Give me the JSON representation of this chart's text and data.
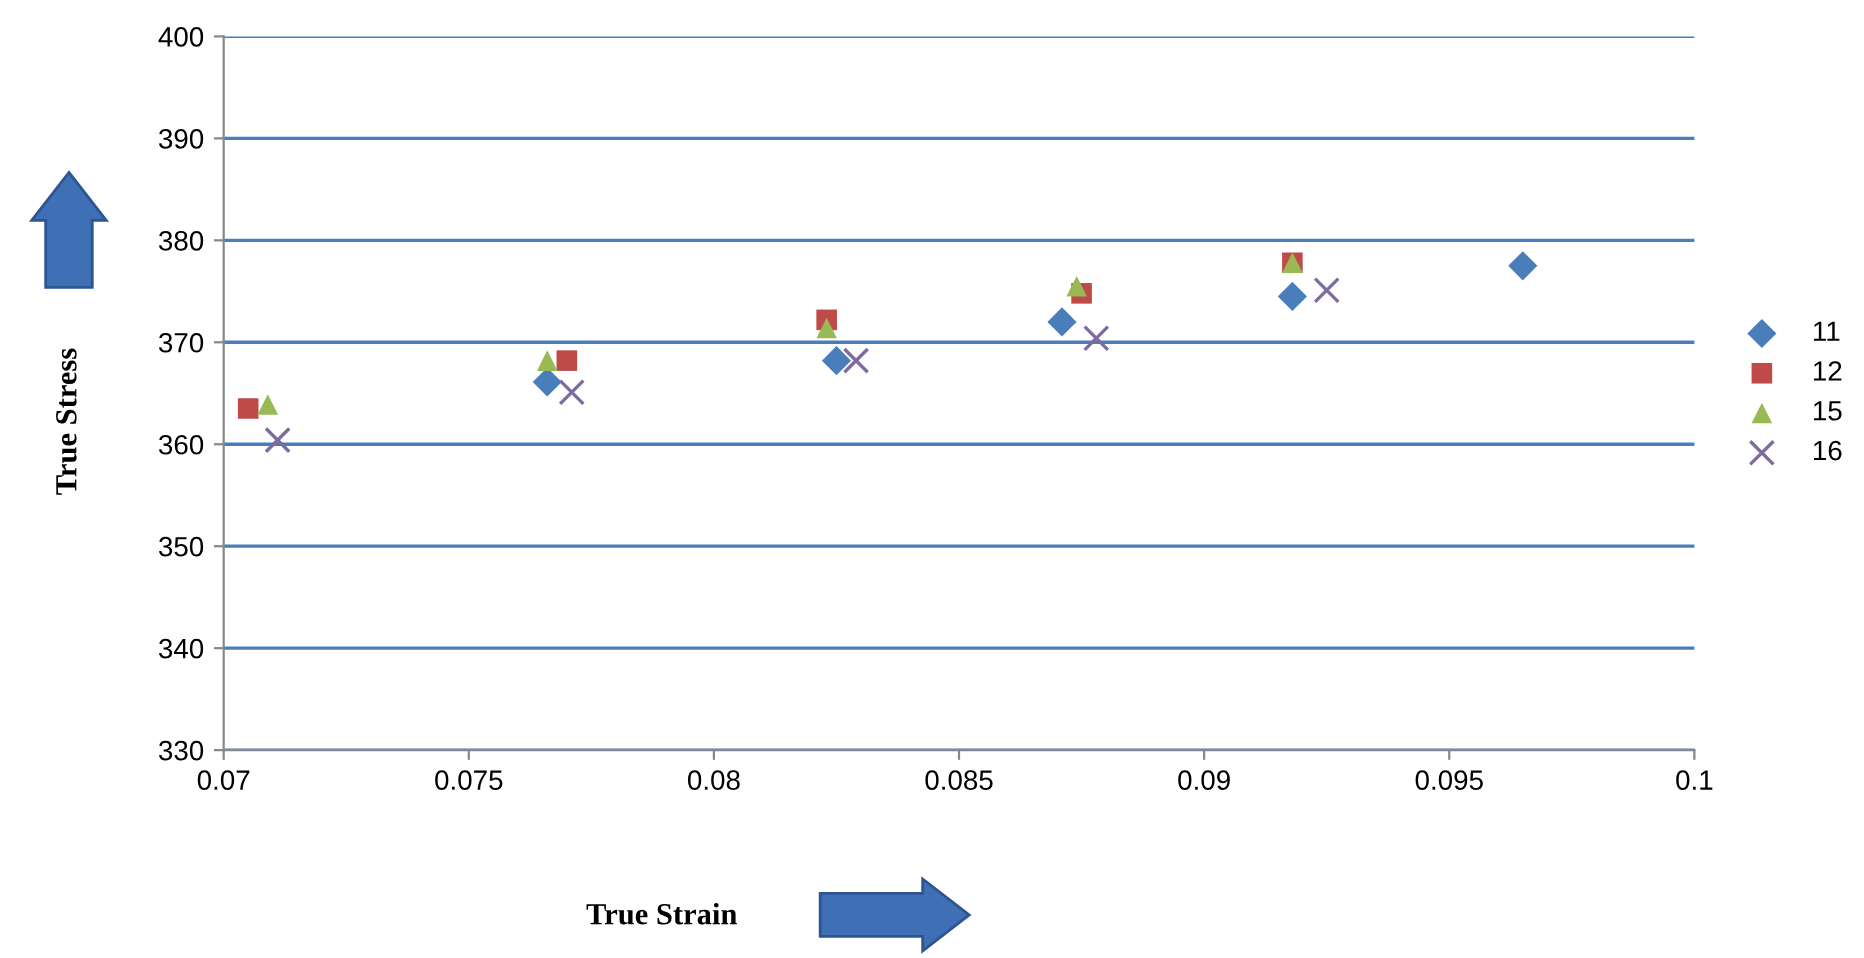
{
  "chart_data": {
    "type": "scatter",
    "xlabel": "True Strain",
    "ylabel": "True Stress",
    "xlim": [
      0.07,
      0.1
    ],
    "ylim": [
      330,
      400
    ],
    "xticks": [
      0.07,
      0.075,
      0.08,
      0.085,
      0.09,
      0.095,
      0.1
    ],
    "yticks": [
      330,
      340,
      350,
      360,
      370,
      380,
      390,
      400
    ],
    "grid": "y",
    "legend": "right",
    "series": [
      {
        "name": "11",
        "color": "#4a7ebb",
        "marker": "diamond",
        "x": [
          0.0766,
          0.0825,
          0.0871,
          0.0918,
          0.0965
        ],
        "values": [
          366.1,
          368.2,
          372.0,
          374.5,
          377.5
        ]
      },
      {
        "name": "12",
        "color": "#be4b48",
        "marker": "square",
        "x": [
          0.0705,
          0.077,
          0.0823,
          0.0875,
          0.0918
        ],
        "values": [
          363.5,
          368.2,
          372.2,
          374.8,
          377.8
        ]
      },
      {
        "name": "15",
        "color": "#98b954",
        "marker": "triangle",
        "x": [
          0.0709,
          0.0766,
          0.0823,
          0.0874,
          0.0918
        ],
        "values": [
          363.9,
          368.2,
          371.4,
          375.5,
          377.8
        ]
      },
      {
        "name": "16",
        "color": "#7d6b9f",
        "marker": "cross",
        "x": [
          0.0711,
          0.0771,
          0.0829,
          0.0878,
          0.0925
        ],
        "values": [
          360.4,
          365.1,
          368.2,
          370.4,
          375.1
        ]
      }
    ]
  }
}
